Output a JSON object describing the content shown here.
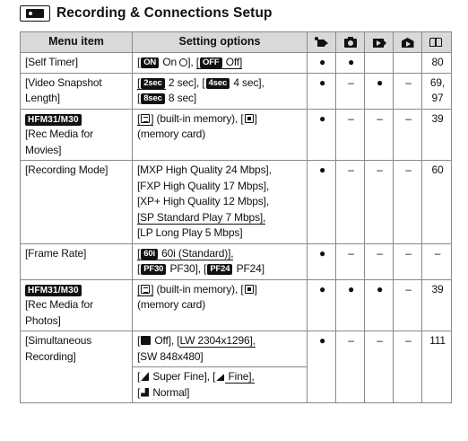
{
  "title": "Recording & Connections Setup",
  "header": {
    "menu_item": "Menu item",
    "setting_options": "Setting options",
    "icons": [
      "movie-mode-icon",
      "photo-mode-icon",
      "movie-playback-icon",
      "photo-playback-icon",
      "page-reference-icon"
    ]
  },
  "rows": {
    "self_timer": {
      "name": "[Self Timer]",
      "on_tag": "ON",
      "on_text": " On ",
      "off_tag": "OFF",
      "off_text": " Off",
      "marks": [
        "●",
        "●",
        "",
        ""
      ],
      "page": "80"
    },
    "video_snapshot": {
      "name": "[Video Snapshot Length]",
      "tag1": "2sec",
      "text1": " 2 sec], [",
      "tag2": "4sec",
      "text2": " 4 sec],",
      "tag3": "8sec",
      "text3": " 8 sec]",
      "marks": [
        "●",
        "–",
        "●",
        "–"
      ],
      "page": "69, 97"
    },
    "rec_media_movies": {
      "badge": "HFM31/M30",
      "name": "[Rec Media for Movies]",
      "opt1": " (built-in memory), [",
      "opt2": "(memory card)",
      "marks": [
        "●",
        "–",
        "–",
        "–"
      ],
      "page": "39"
    },
    "recording_mode": {
      "name": "[Recording Mode]",
      "options": [
        "[MXP High Quality 24 Mbps],",
        "[FXP High Quality 17 Mbps],",
        "[XP+ High Quality 12 Mbps],",
        "[SP Standard Play 7 Mbps],",
        "[LP Long Play 5 Mbps]"
      ],
      "marks": [
        "●",
        "–",
        "–",
        "–"
      ],
      "page": "60"
    },
    "frame_rate": {
      "name": "[Frame Rate]",
      "tag1": "60i",
      "text1": " 60i (Standard)],",
      "tag2": "PF30",
      "text2": " PF30], [",
      "tag3": "PF24",
      "text3": " PF24]",
      "marks": [
        "●",
        "–",
        "–",
        "–"
      ],
      "page": "–"
    },
    "rec_media_photos": {
      "badge": "HFM31/M30",
      "name": "[Rec Media for Photos]",
      "opt1": " (built-in memory), [",
      "opt2": "(memory card)",
      "marks": [
        "●",
        "●",
        "●",
        "–"
      ],
      "page": "39"
    },
    "simultaneous": {
      "name": "[Simultaneous Recording]",
      "line1_a": " Off], [",
      "line1_b": "LW 2304x1296],",
      "line2": "[SW 848x480]",
      "line3_a": " Super Fine], [",
      "line3_b": " Fine],",
      "line4": " Normal]",
      "marks": [
        "●",
        "–",
        "–",
        "–"
      ],
      "page": "111"
    }
  }
}
